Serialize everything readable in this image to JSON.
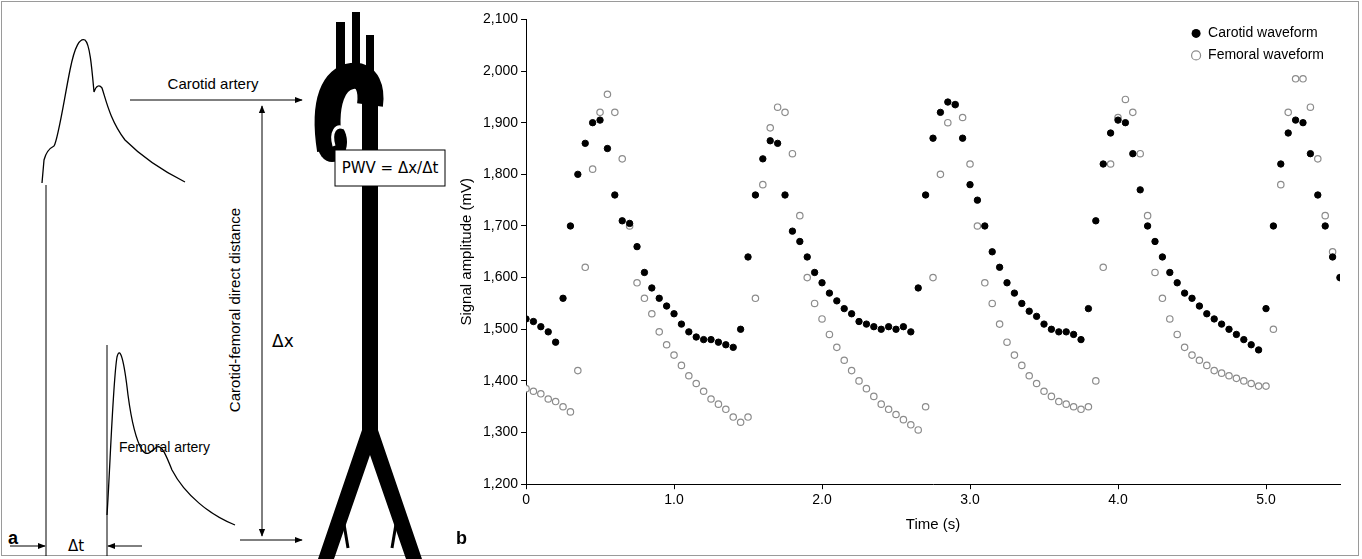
{
  "diagram": {
    "panel_label": "a",
    "carotid_label": "Carotid artery",
    "femoral_label": "Femoral artery",
    "distance_label": "Carotid-femoral direct distance",
    "delta_x": "Δx",
    "delta_t": "Δt",
    "formula": "PWV = Δx/Δt"
  },
  "chart_data": {
    "type": "scatter",
    "panel_label": "b",
    "x_label": "Time (s)",
    "y_label": "Signal amplitude (mV)",
    "x": [
      0,
      0.05,
      0.1,
      0.15,
      0.2,
      0.25,
      0.3,
      0.35,
      0.4,
      0.45,
      0.5,
      0.55,
      0.6,
      0.65,
      0.7,
      0.75,
      0.8,
      0.85,
      0.9,
      0.95,
      1,
      1.05,
      1.1,
      1.15,
      1.2,
      1.25,
      1.3,
      1.35,
      1.4,
      1.45,
      1.5,
      1.55,
      1.6,
      1.65,
      1.7,
      1.75,
      1.8,
      1.85,
      1.9,
      1.95,
      2,
      2.05,
      2.1,
      2.15,
      2.2,
      2.25,
      2.3,
      2.35,
      2.4,
      2.45,
      2.5,
      2.55,
      2.6,
      2.65,
      2.7,
      2.75,
      2.8,
      2.85,
      2.9,
      2.95,
      3,
      3.05,
      3.1,
      3.15,
      3.2,
      3.25,
      3.3,
      3.35,
      3.4,
      3.45,
      3.5,
      3.55,
      3.6,
      3.65,
      3.7,
      3.75,
      3.8,
      3.85,
      3.9,
      3.95,
      4,
      4.05,
      4.1,
      4.15,
      4.2,
      4.25,
      4.3,
      4.35,
      4.4,
      4.45,
      4.5,
      4.55,
      4.6,
      4.65,
      4.7,
      4.75,
      4.8,
      4.85,
      4.9,
      4.95,
      5,
      5.05,
      5.1,
      5.15,
      5.2,
      5.25,
      5.3,
      5.35,
      5.4,
      5.45,
      5.5
    ],
    "series": [
      {
        "name": "Carotid waveform",
        "color": "#000000",
        "marker": "circle",
        "values": [
          1520,
          1515,
          1505,
          1495,
          1475,
          1560,
          1700,
          1800,
          1860,
          1900,
          1905,
          1850,
          1760,
          1710,
          1705,
          1660,
          1610,
          1580,
          1560,
          1545,
          1530,
          1510,
          1495,
          1485,
          1480,
          1480,
          1475,
          1470,
          1465,
          1500,
          1640,
          1760,
          1830,
          1865,
          1860,
          1760,
          1690,
          1670,
          1640,
          1610,
          1590,
          1570,
          1555,
          1540,
          1530,
          1515,
          1510,
          1505,
          1500,
          1505,
          1500,
          1505,
          1495,
          1580,
          1760,
          1870,
          1920,
          1940,
          1935,
          1870,
          1780,
          1750,
          1700,
          1650,
          1620,
          1590,
          1570,
          1550,
          1535,
          1525,
          1510,
          1500,
          1495,
          1495,
          1490,
          1480,
          1540,
          1710,
          1820,
          1880,
          1905,
          1900,
          1840,
          1770,
          1700,
          1670,
          1640,
          1610,
          1590,
          1570,
          1560,
          1545,
          1530,
          1520,
          1510,
          1500,
          1490,
          1480,
          1470,
          1460,
          1540,
          1700,
          1820,
          1880,
          1905,
          1900,
          1840,
          1760,
          1700,
          1640,
          1600
        ]
      },
      {
        "name": "Femoral waveform",
        "color": "#8c8c8c",
        "marker": "circle-open",
        "values": [
          1385,
          1380,
          1375,
          1365,
          1360,
          1350,
          1340,
          1420,
          1620,
          1810,
          1920,
          1955,
          1920,
          1830,
          1700,
          1590,
          1560,
          1530,
          1495,
          1470,
          1450,
          1430,
          1410,
          1395,
          1380,
          1365,
          1355,
          1345,
          1330,
          1320,
          1330,
          1560,
          1780,
          1890,
          1930,
          1920,
          1840,
          1720,
          1600,
          1550,
          1520,
          1490,
          1465,
          1440,
          1420,
          1400,
          1385,
          1370,
          1355,
          1345,
          1335,
          1325,
          1315,
          1305,
          1350,
          1600,
          1800,
          1900,
          1935,
          1910,
          1820,
          1700,
          1590,
          1550,
          1510,
          1475,
          1450,
          1430,
          1410,
          1395,
          1380,
          1370,
          1360,
          1355,
          1350,
          1345,
          1350,
          1400,
          1620,
          1820,
          1910,
          1945,
          1920,
          1840,
          1720,
          1610,
          1560,
          1520,
          1490,
          1465,
          1450,
          1440,
          1430,
          1420,
          1415,
          1410,
          1405,
          1400,
          1395,
          1390,
          1390,
          1500,
          1780,
          1920,
          1985,
          1985,
          1930,
          1830,
          1720,
          1650,
          1600
        ]
      }
    ],
    "xlim": [
      0,
      5.5
    ],
    "xticks": [
      0,
      {
        "value": 1,
        "label": "1.0"
      },
      {
        "value": 2,
        "label": "2.0"
      },
      {
        "value": 3,
        "label": "3.0"
      },
      {
        "value": 4,
        "label": "4.0"
      },
      {
        "value": 5,
        "label": "5.0"
      }
    ],
    "ylim": [
      1200,
      2100
    ],
    "yticks": [
      {
        "value": 1200,
        "label": "1,200"
      },
      {
        "value": 1300,
        "label": "1,300"
      },
      {
        "value": 1400,
        "label": "1,400"
      },
      {
        "value": 1500,
        "label": "1,500"
      },
      {
        "value": 1600,
        "label": "1,600"
      },
      {
        "value": 1700,
        "label": "1,700"
      },
      {
        "value": 1800,
        "label": "1,800"
      },
      {
        "value": 1900,
        "label": "1,900"
      },
      {
        "value": 2000,
        "label": "2,000"
      },
      {
        "value": 2100,
        "label": "2,100"
      }
    ],
    "grid": false,
    "legend": "top right"
  }
}
